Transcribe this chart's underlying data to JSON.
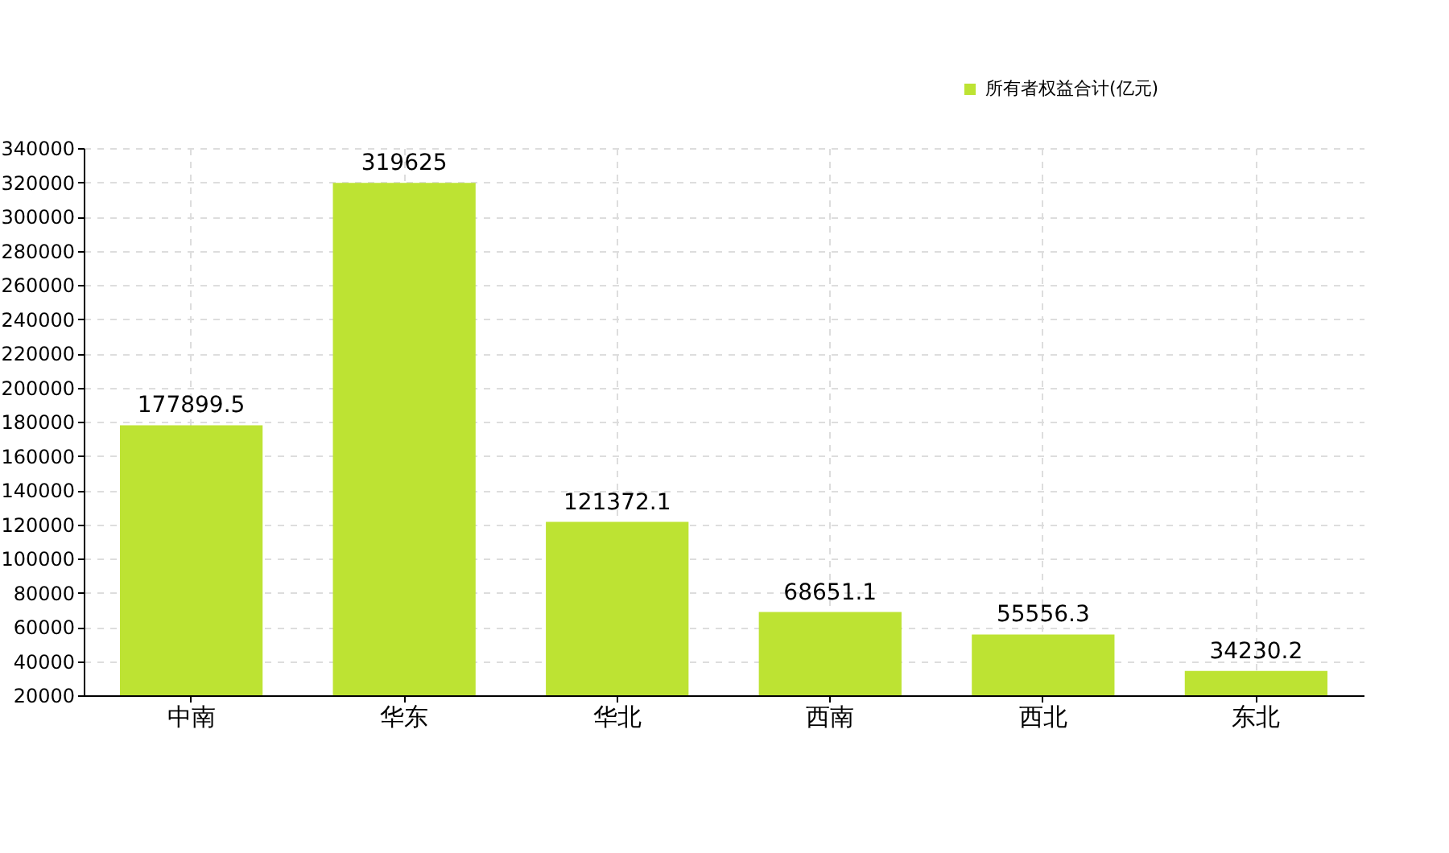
{
  "chart_data": {
    "type": "bar",
    "categories": [
      "中南",
      "华东",
      "华北",
      "西南",
      "西北",
      "东北"
    ],
    "series": [
      {
        "name": "所有者权益合计(亿元)",
        "color": "#bde333",
        "values": [
          177899.5,
          319625,
          121372.1,
          68651.1,
          55556.3,
          34230.2
        ]
      }
    ],
    "ylim": [
      20000,
      340000
    ],
    "yticks": [
      20000,
      40000,
      60000,
      80000,
      100000,
      120000,
      140000,
      160000,
      180000,
      200000,
      220000,
      240000,
      260000,
      280000,
      300000,
      320000,
      340000
    ],
    "grid": true,
    "legend": "top right",
    "data_labels": true
  }
}
